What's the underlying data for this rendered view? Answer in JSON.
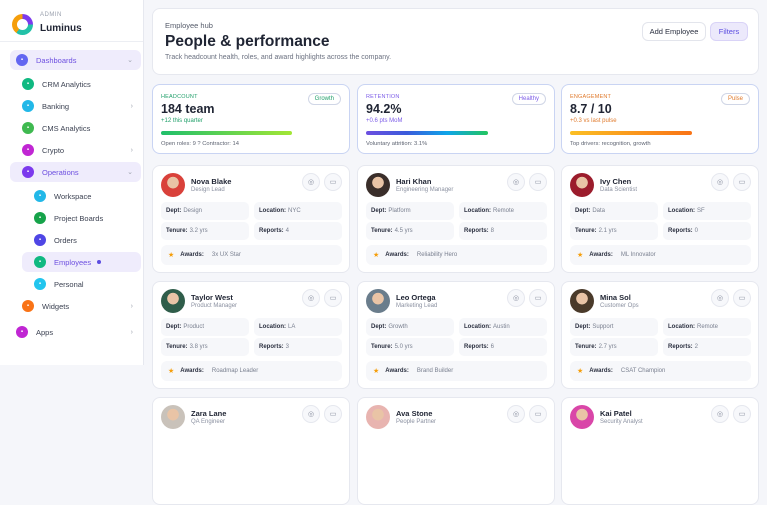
{
  "brand": {
    "kicker": "ADMIN",
    "name": "Luminus"
  },
  "nav": [
    {
      "label": "Dashboards",
      "level": 0,
      "active": true,
      "chev": "v",
      "color": "#6366f1"
    },
    {
      "label": "CRM Analytics",
      "level": 1,
      "color": "#10b981"
    },
    {
      "label": "Banking",
      "level": 1,
      "chev": ">",
      "color": "#22b8e8"
    },
    {
      "label": "CMS Analytics",
      "level": 1,
      "color": "#3fb950"
    },
    {
      "label": "Crypto",
      "level": 1,
      "chev": ">",
      "color": "#c026d3"
    },
    {
      "label": "Operations",
      "level": 1,
      "active": true,
      "chev": "v",
      "color": "#7c3aed"
    },
    {
      "label": "Workspace",
      "level": 2,
      "color": "#22b8e8"
    },
    {
      "label": "Project Boards",
      "level": 2,
      "color": "#16a34a"
    },
    {
      "label": "Orders",
      "level": 2,
      "color": "#4f46e5"
    },
    {
      "label": "Employees",
      "level": 2,
      "active": true,
      "dot": true,
      "color": "#10b981"
    },
    {
      "label": "Personal",
      "level": 2,
      "color": "#22c5ee"
    },
    {
      "label": "Widgets",
      "level": 1,
      "chev": ">",
      "color": "#f97316"
    },
    {
      "label": "Apps",
      "level": 0,
      "chev": ">",
      "color": "#c026d3"
    }
  ],
  "header": {
    "kicker": "Employee hub",
    "title": "People & performance",
    "subtitle": "Track headcount health, roles, and award highlights across the company.",
    "add_label": "Add Employee",
    "filters_label": "Filters"
  },
  "stats": [
    {
      "label": "HEADCOUNT",
      "value": "184 team",
      "delta": "+12 this quarter",
      "note": "Open roles: 9 ? Contractor: 14",
      "pill": "Growth",
      "color": "#22a06b",
      "bar": "linear-gradient(90deg,#1fbf6b,#a3e635)",
      "fill": 0.77
    },
    {
      "label": "RETENTION",
      "value": "94.2%",
      "delta": "+0.6 pts MoM",
      "note": "Voluntary attrition: 3.1%",
      "pill": "Healthy",
      "color": "#7c5ce8",
      "bar": "linear-gradient(90deg,#6d4fe0,#3b5bdb,#0ea5e9,#22c55e)",
      "fill": 0.72
    },
    {
      "label": "ENGAGEMENT",
      "value": "8.7 / 10",
      "delta": "+0.3 vs last pulse",
      "note": "Top drivers: recognition, growth",
      "pill": "Pulse",
      "color": "#e07a2c",
      "bar": "linear-gradient(90deg,#fbbf24,#f97316)",
      "fill": 0.72
    }
  ],
  "employees": [
    {
      "name": "Nova Blake",
      "role": "Design Lead",
      "dept": "Design",
      "location": "NYC",
      "tenure": "3.2 yrs",
      "reports": "4",
      "awards": "3x UX Star",
      "avatar": "#d9413a"
    },
    {
      "name": "Hari Khan",
      "role": "Engineering Manager",
      "dept": "Platform",
      "location": "Remote",
      "tenure": "4.5 yrs",
      "reports": "8",
      "awards": "Reliability Hero",
      "avatar": "#3a2e2a"
    },
    {
      "name": "Ivy Chen",
      "role": "Data Scientist",
      "dept": "Data",
      "location": "SF",
      "tenure": "2.1 yrs",
      "reports": "0",
      "awards": "ML Innovator",
      "avatar": "#9b1c2c"
    },
    {
      "name": "Taylor West",
      "role": "Product Manager",
      "dept": "Product",
      "location": "LA",
      "tenure": "3.8 yrs",
      "reports": "3",
      "awards": "Roadmap Leader",
      "avatar": "#2f5d4a"
    },
    {
      "name": "Leo Ortega",
      "role": "Marketing Lead",
      "dept": "Growth",
      "location": "Austin",
      "tenure": "5.0 yrs",
      "reports": "6",
      "awards": "Brand Builder",
      "avatar": "#6a7d8c"
    },
    {
      "name": "Mina Sol",
      "role": "Customer Ops",
      "dept": "Support",
      "location": "Remote",
      "tenure": "2.7 yrs",
      "reports": "2",
      "awards": "CSAT Champion",
      "avatar": "#4a3a2a"
    },
    {
      "name": "Zara Lane",
      "role": "QA Engineer",
      "avatar": "#c9c2ba"
    },
    {
      "name": "Ava Stone",
      "role": "People Partner",
      "avatar": "#e8b4b0"
    },
    {
      "name": "Kai Patel",
      "role": "Security Analyst",
      "avatar": "#d946a8"
    }
  ],
  "labels": {
    "dept": "Dept:",
    "location": "Location:",
    "tenure": "Tenure:",
    "reports": "Reports:",
    "awards": "Awards:"
  }
}
